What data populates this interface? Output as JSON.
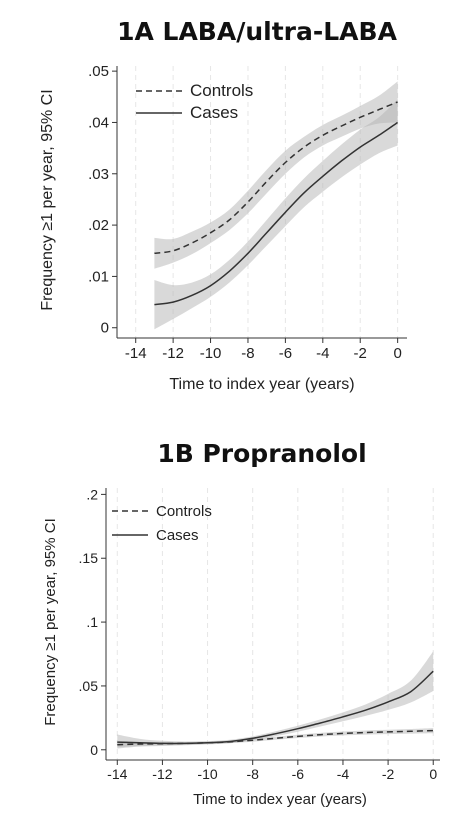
{
  "chart_data": [
    {
      "type": "line",
      "title": "1A LABA/ultra-LABA",
      "xlabel": "Time to index year (years)",
      "ylabel": "Frequency ≥1 per year, 95% CI",
      "xlim": [
        -15,
        0.5
      ],
      "ylim": [
        -0.002,
        0.051
      ],
      "x_ticks": [
        -14,
        -12,
        -10,
        -8,
        -6,
        -4,
        -2,
        0
      ],
      "x_tick_labels": [
        "-14",
        "-12",
        "-10",
        "-8",
        "-6",
        "-4",
        "-2",
        "0"
      ],
      "y_ticks": [
        0,
        0.01,
        0.02,
        0.03,
        0.04,
        0.05
      ],
      "y_tick_labels": [
        "0",
        ".01",
        ".02",
        ".03",
        ".04",
        ".05"
      ],
      "grid": "vertical dashed",
      "legend_position": "top-left",
      "series": [
        {
          "name": "Controls",
          "style": "dashed",
          "x": [
            -13,
            -12,
            -11,
            -10,
            -9,
            -8,
            -7,
            -6,
            -5,
            -4,
            -3,
            -2,
            -1,
            0
          ],
          "y": [
            0.0145,
            0.015,
            0.0165,
            0.0185,
            0.021,
            0.0245,
            0.0285,
            0.0322,
            0.0352,
            0.0375,
            0.0393,
            0.041,
            0.0425,
            0.044
          ],
          "ci_lower": [
            0.0115,
            0.0127,
            0.0143,
            0.0165,
            0.019,
            0.0223,
            0.0262,
            0.03,
            0.0332,
            0.0355,
            0.0372,
            0.0388,
            0.0398,
            0.04
          ],
          "ci_upper": [
            0.0175,
            0.0173,
            0.0187,
            0.0205,
            0.023,
            0.0267,
            0.0308,
            0.0345,
            0.0372,
            0.0395,
            0.0413,
            0.0432,
            0.0452,
            0.048
          ]
        },
        {
          "name": "Cases",
          "style": "solid",
          "x": [
            -13,
            -12,
            -11,
            -10,
            -9,
            -8,
            -7,
            -6,
            -5,
            -4,
            -3,
            -2,
            -1,
            0
          ],
          "y": [
            0.0045,
            0.005,
            0.0063,
            0.0082,
            0.011,
            0.0145,
            0.0185,
            0.0225,
            0.0263,
            0.0295,
            0.0325,
            0.0352,
            0.0375,
            0.04
          ],
          "ci_lower": [
            -0.0003,
            0.0017,
            0.0038,
            0.006,
            0.0088,
            0.0122,
            0.016,
            0.0198,
            0.0235,
            0.0265,
            0.0293,
            0.0318,
            0.034,
            0.0355
          ],
          "ci_upper": [
            0.0093,
            0.0083,
            0.0088,
            0.0104,
            0.0132,
            0.0168,
            0.021,
            0.0252,
            0.0291,
            0.0325,
            0.0357,
            0.0386,
            0.041,
            0.0445
          ]
        }
      ]
    },
    {
      "type": "line",
      "title": "1B Propranolol",
      "xlabel": "Time to index year (years)",
      "ylabel": "Frequency ≥1 per year, 95% CI",
      "xlim": [
        -14.5,
        0.3
      ],
      "ylim": [
        -0.008,
        0.205
      ],
      "x_ticks": [
        -14,
        -12,
        -10,
        -8,
        -6,
        -4,
        -2,
        0
      ],
      "x_tick_labels": [
        "-14",
        "-12",
        "-10",
        "-8",
        "-6",
        "-4",
        "-2",
        "0"
      ],
      "y_ticks": [
        0,
        0.05,
        0.1,
        0.15,
        0.2
      ],
      "y_tick_labels": [
        "0",
        ".05",
        ".1",
        ".15",
        ".2"
      ],
      "grid": "vertical dashed",
      "legend_position": "top-left",
      "series": [
        {
          "name": "Controls",
          "style": "dashed",
          "x": [
            -14,
            -13,
            -12,
            -11,
            -10,
            -9,
            -8,
            -7,
            -6,
            -5,
            -4,
            -3,
            -2,
            -1,
            0
          ],
          "y": [
            0.004,
            0.0045,
            0.0048,
            0.005,
            0.0055,
            0.0062,
            0.0075,
            0.009,
            0.0105,
            0.0118,
            0.0128,
            0.0135,
            0.014,
            0.0145,
            0.015
          ],
          "ci_lower": [
            0.002,
            0.003,
            0.0035,
            0.004,
            0.0045,
            0.0052,
            0.0063,
            0.0078,
            0.0092,
            0.0104,
            0.0113,
            0.0119,
            0.0123,
            0.0127,
            0.013
          ],
          "ci_upper": [
            0.006,
            0.006,
            0.0061,
            0.006,
            0.0065,
            0.0072,
            0.0087,
            0.0102,
            0.0118,
            0.0132,
            0.0143,
            0.0151,
            0.0157,
            0.0163,
            0.017
          ]
        },
        {
          "name": "Cases",
          "style": "solid",
          "x": [
            -14,
            -13,
            -12,
            -11,
            -10,
            -9,
            -8,
            -7,
            -6,
            -5,
            -4,
            -3,
            -2,
            -1,
            0
          ],
          "y": [
            0.006,
            0.0055,
            0.005,
            0.005,
            0.0055,
            0.0065,
            0.009,
            0.0125,
            0.0165,
            0.021,
            0.0258,
            0.031,
            0.0375,
            0.0455,
            0.0615
          ],
          "ci_lower": [
            0.001,
            0.0025,
            0.003,
            0.0035,
            0.0042,
            0.0052,
            0.0075,
            0.0106,
            0.0142,
            0.0182,
            0.0223,
            0.0265,
            0.0312,
            0.037,
            0.046
          ],
          "ci_upper": [
            0.012,
            0.0085,
            0.007,
            0.0065,
            0.0068,
            0.0078,
            0.0105,
            0.0144,
            0.0188,
            0.0238,
            0.0293,
            0.0355,
            0.0438,
            0.054,
            0.077
          ]
        }
      ]
    }
  ]
}
